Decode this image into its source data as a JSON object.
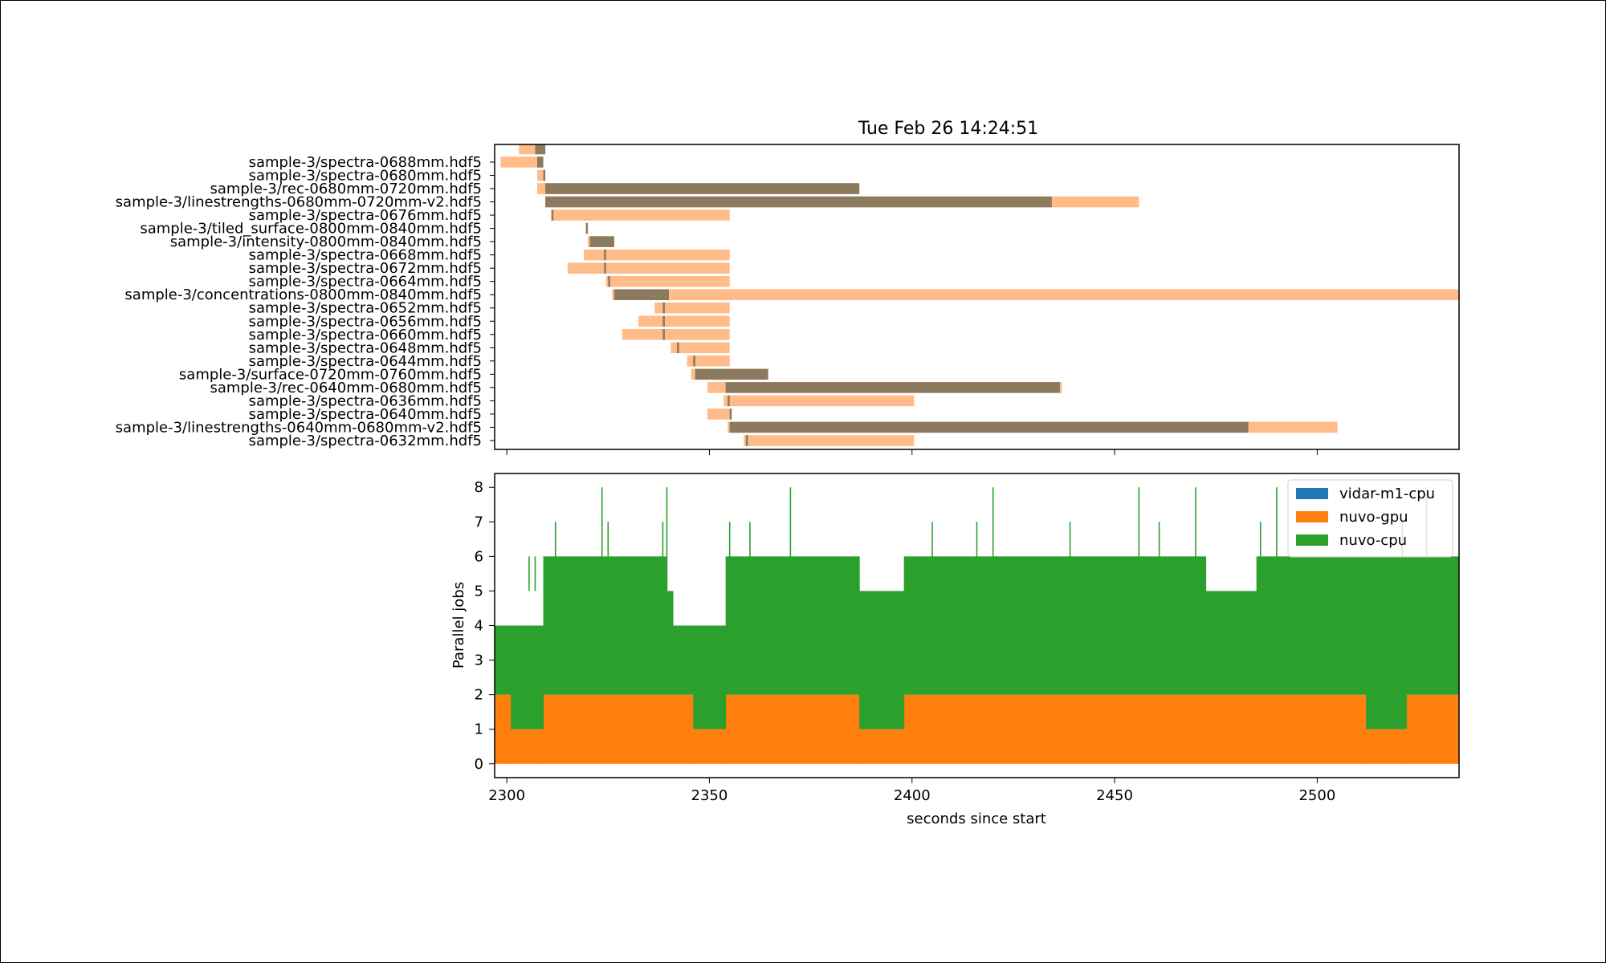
{
  "chart_data": [
    {
      "type": "gantt",
      "title": "Tue Feb 26 14:24:51",
      "xlim": [
        2297,
        2535
      ],
      "colors": {
        "waiting": "#ffbb88",
        "running": "#8c7a5e"
      },
      "tasks": [
        {
          "name": "",
          "queued": 2303,
          "start": 2307,
          "end": 2309.5
        },
        {
          "name": "sample-3/spectra-0688mm.hdf5",
          "queued": 2298.5,
          "start": 2307.5,
          "end": 2309
        },
        {
          "name": "sample-3/spectra-0680mm.hdf5",
          "queued": 2307.5,
          "start": 2309,
          "end": 2309.5
        },
        {
          "name": "sample-3/rec-0680mm-0720mm.hdf5",
          "queued": 2307.5,
          "start": 2309.5,
          "end": 2387
        },
        {
          "name": "sample-3/linestrengths-0680mm-0720mm-v2.hdf5",
          "queued": 2309.5,
          "start": 2309.5,
          "end": 2434.5,
          "end_wait": 2456
        },
        {
          "name": "sample-3/spectra-0676mm.hdf5",
          "queued": 2311,
          "start": 2311,
          "end": 2311.5,
          "end_wait": 2355
        },
        {
          "name": "sample-3/tiled_surface-0800mm-0840mm.hdf5",
          "queued": 2319.5,
          "start": 2319.5,
          "end": 2320
        },
        {
          "name": "sample-3/intensity-0800mm-0840mm.hdf5",
          "queued": 2320,
          "start": 2320.5,
          "end": 2326.5
        },
        {
          "name": "sample-3/spectra-0668mm.hdf5",
          "queued": 2319,
          "start": 2324,
          "end": 2324.5,
          "end_wait": 2355
        },
        {
          "name": "sample-3/spectra-0672mm.hdf5",
          "queued": 2315,
          "start": 2324,
          "end": 2324.5,
          "end_wait": 2355
        },
        {
          "name": "sample-3/spectra-0664mm.hdf5",
          "queued": 2324.5,
          "start": 2325,
          "end": 2325.5,
          "end_wait": 2355
        },
        {
          "name": "sample-3/concentrations-0800mm-0840mm.hdf5",
          "queued": 2326,
          "start": 2326.5,
          "end": 2340,
          "end_wait": 2535
        },
        {
          "name": "sample-3/spectra-0652mm.hdf5",
          "queued": 2336.5,
          "start": 2338.5,
          "end": 2339,
          "end_wait": 2355
        },
        {
          "name": "sample-3/spectra-0656mm.hdf5",
          "queued": 2332.5,
          "start": 2338.5,
          "end": 2339,
          "end_wait": 2355
        },
        {
          "name": "sample-3/spectra-0660mm.hdf5",
          "queued": 2328.5,
          "start": 2338.5,
          "end": 2339,
          "end_wait": 2355
        },
        {
          "name": "sample-3/spectra-0648mm.hdf5",
          "queued": 2340.5,
          "start": 2342,
          "end": 2342.5,
          "end_wait": 2355
        },
        {
          "name": "sample-3/spectra-0644mm.hdf5",
          "queued": 2344.5,
          "start": 2346,
          "end": 2346.5,
          "end_wait": 2355
        },
        {
          "name": "sample-3/surface-0720mm-0760mm.hdf5",
          "queued": 2345.5,
          "start": 2346.5,
          "end": 2364.5
        },
        {
          "name": "sample-3/rec-0640mm-0680mm.hdf5",
          "queued": 2349.5,
          "start": 2354,
          "end": 2436.5,
          "end_wait": 2437
        },
        {
          "name": "sample-3/spectra-0636mm.hdf5",
          "queued": 2353.5,
          "start": 2354.5,
          "end": 2355,
          "end_wait": 2400.5
        },
        {
          "name": "sample-3/spectra-0640mm.hdf5",
          "queued": 2349.5,
          "start": 2355,
          "end": 2355.5
        },
        {
          "name": "sample-3/linestrengths-0640mm-0680mm-v2.hdf5",
          "queued": 2354.5,
          "start": 2355,
          "end": 2483,
          "end_wait": 2505
        },
        {
          "name": "sample-3/spectra-0632mm.hdf5",
          "queued": 2358.5,
          "start": 2359,
          "end": 2359.5,
          "end_wait": 2400.5
        }
      ]
    },
    {
      "type": "area",
      "stacked": true,
      "step": true,
      "xlabel": "seconds since start",
      "ylabel": "Parallel jobs",
      "xlim": [
        2297,
        2535
      ],
      "ylim": [
        -0.4,
        8.4
      ],
      "xticks": [
        2300,
        2350,
        2400,
        2450,
        2500
      ],
      "yticks": [
        0,
        1,
        2,
        3,
        4,
        5,
        6,
        7,
        8
      ],
      "legend_position": "top-right",
      "series": [
        {
          "name": "vidar-m1-cpu",
          "color": "#1f77b4",
          "segments": []
        },
        {
          "name": "nuvo-gpu",
          "color": "#ff7f0e",
          "segments": [
            [
              2297,
              2301,
              2
            ],
            [
              2301,
              2309,
              1
            ],
            [
              2309,
              2346,
              2
            ],
            [
              2346,
              2354,
              1
            ],
            [
              2354,
              2387,
              2
            ],
            [
              2387,
              2398,
              1
            ],
            [
              2398,
              2512,
              2
            ],
            [
              2512,
              2522,
              1
            ],
            [
              2522,
              2535,
              2
            ]
          ]
        },
        {
          "name": "nuvo-cpu",
          "color": "#2ca02c",
          "segments": [
            [
              2297,
              2301,
              2
            ],
            [
              2301,
              2309,
              3
            ],
            [
              2309,
              2339.5,
              4
            ],
            [
              2339.5,
              2341,
              3
            ],
            [
              2341,
              2346,
              2
            ],
            [
              2346,
              2354,
              3
            ],
            [
              2354,
              2387,
              4
            ],
            [
              2387,
              2398,
              4
            ],
            [
              2398,
              2436,
              4
            ],
            [
              2436,
              2472.5,
              4
            ],
            [
              2472.5,
              2485,
              3
            ],
            [
              2485,
              2512,
              4
            ],
            [
              2512,
              2522,
              5
            ],
            [
              2522,
              2535,
              4
            ]
          ]
        }
      ],
      "spikes": [
        [
          2305.5,
          6
        ],
        [
          2307,
          6
        ],
        [
          2312,
          7
        ],
        [
          2323.5,
          8
        ],
        [
          2325,
          7
        ],
        [
          2338.5,
          7
        ],
        [
          2339.5,
          8
        ],
        [
          2343,
          5
        ],
        [
          2355,
          7
        ],
        [
          2360,
          7
        ],
        [
          2370,
          8
        ],
        [
          2383,
          6
        ],
        [
          2405,
          7
        ],
        [
          2416,
          7
        ],
        [
          2420,
          8
        ],
        [
          2424,
          6
        ],
        [
          2439,
          7
        ],
        [
          2456,
          8
        ],
        [
          2461,
          7
        ],
        [
          2470,
          8
        ],
        [
          2486,
          7
        ],
        [
          2490,
          8
        ],
        [
          2521,
          7
        ],
        [
          2527,
          8
        ]
      ]
    }
  ]
}
